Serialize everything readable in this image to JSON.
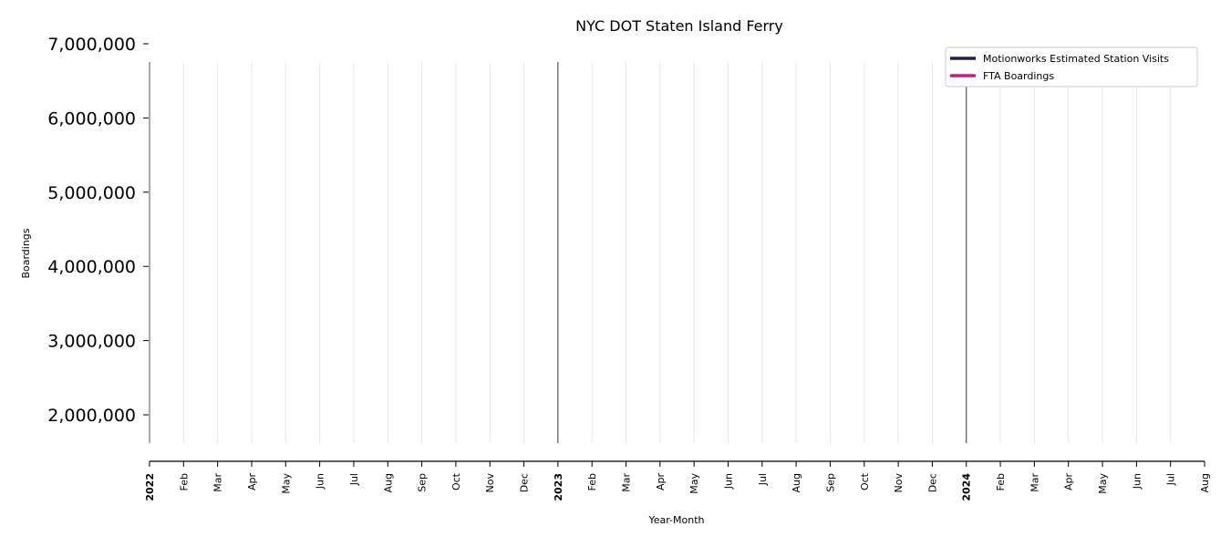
{
  "chart_data": {
    "type": "line",
    "title": "NYC DOT Staten Island Ferry",
    "xlabel": "Year-Month",
    "ylabel": "Boardings",
    "ylim": [
      1600000,
      7000000
    ],
    "yticks": [
      2000000,
      3000000,
      4000000,
      5000000,
      6000000,
      7000000
    ],
    "ytick_labels": [
      "2,000,000",
      "3,000,000",
      "4,000,000",
      "5,000,000",
      "6,000,000",
      "7,000,000"
    ],
    "xlim": [
      "2022-01",
      "2024-08"
    ],
    "x_ticks": [
      "2022",
      "Feb",
      "Mar",
      "Apr",
      "May",
      "Jun",
      "Jul",
      "Aug",
      "Sep",
      "Oct",
      "Nov",
      "Dec",
      "2023",
      "Feb",
      "Mar",
      "Apr",
      "May",
      "Jun",
      "Jul",
      "Aug",
      "Sep",
      "Oct",
      "Nov",
      "Dec",
      "2024",
      "Feb",
      "Mar",
      "Apr",
      "May",
      "Jun",
      "Jul",
      "Aug"
    ],
    "year_ticks": [
      "2022",
      "2023",
      "2024"
    ],
    "grid": "vertical",
    "legend_position": "top-right",
    "series": [
      {
        "name": "Motionworks Estimated Station Visits",
        "color": "#1f1f4e",
        "x": [],
        "values": []
      },
      {
        "name": "FTA Boardings",
        "color": "#c81e8a",
        "x": [],
        "values": []
      }
    ]
  }
}
